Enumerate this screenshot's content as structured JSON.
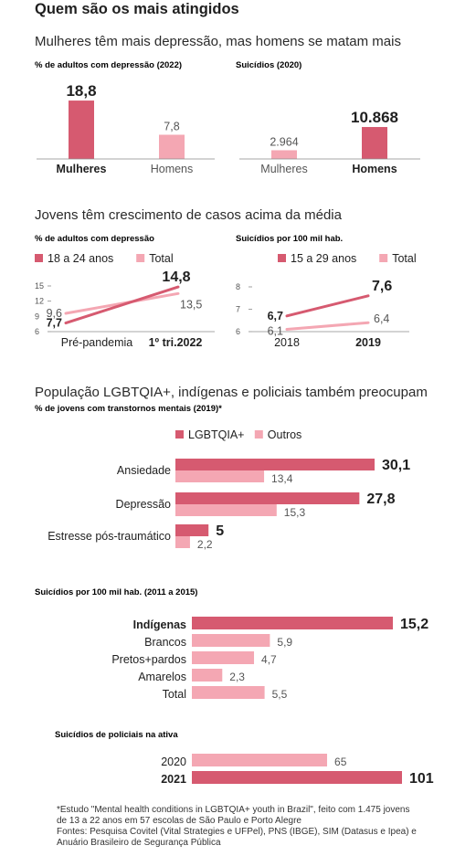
{
  "colors": {
    "dark": "#d65a70",
    "light": "#f4a7b3",
    "axis": "#8a8a8a",
    "text": "#1f1f1f",
    "gray": "#555555"
  },
  "header": {
    "title": "Quem são os mais atingidos",
    "section1": "Mulheres têm mais depressão, mas homens se matam mais",
    "section2": "Jovens têm crescimento de casos acima da média",
    "section3": "População LGBTQIA+, indígenas e policiais também preocupam"
  },
  "footnote": {
    "line1": "*Estudo \"Mental health conditions in LGBTQIA+ youth in Brazil\", feito com 1.475 jovens",
    "line2": "de 13 a 22 anos em 57 escolas de São Paulo e Porto Alegre",
    "line3": "Fontes: Pesquisa Covitel (Vital Strategies e UFPel), PNS (IBGE), SIM (Datasus e Ipea) e",
    "line4": "Anuário Brasileiro de Segurança Pública"
  },
  "chart_data": [
    {
      "id": "depressao-sexo",
      "type": "bar",
      "title": "% de adultos com depressão (2022)",
      "categories": [
        "Mulheres",
        "Homens"
      ],
      "value_labels": [
        "18,8",
        "7,8"
      ],
      "values": [
        18.8,
        7.8
      ],
      "highlight": [
        true,
        false
      ],
      "ylim": [
        0,
        20
      ]
    },
    {
      "id": "suicidios-sexo",
      "type": "bar",
      "title": "Suicídios (2020)",
      "categories": [
        "Mulheres",
        "Homens"
      ],
      "value_labels": [
        "2.964",
        "10.868"
      ],
      "values": [
        2964,
        10868
      ],
      "highlight": [
        false,
        true
      ],
      "ylim": [
        0,
        11500
      ]
    },
    {
      "id": "depressao-jovens",
      "type": "line",
      "title": "% de adultos com depressão",
      "x": [
        "Pré-pandemia",
        "1º tri.2022"
      ],
      "ylim": [
        6,
        15
      ],
      "yticks": [
        "15",
        "12",
        "9",
        "6"
      ],
      "ytick_values": [
        15,
        12,
        9,
        6
      ],
      "series": [
        {
          "name": "18 a 24 anos",
          "values": [
            7.7,
            14.8
          ],
          "labels": [
            "7,7",
            "14,8"
          ],
          "color": "dark"
        },
        {
          "name": "Total",
          "values": [
            9.6,
            13.5
          ],
          "labels": [
            "9,6",
            "13,5"
          ],
          "color": "light"
        }
      ]
    },
    {
      "id": "suicidios-jovens",
      "type": "line",
      "title": "Suicídios por 100 mil hab.",
      "x": [
        "2018",
        "2019"
      ],
      "ylim": [
        6,
        8
      ],
      "yticks": [
        "8",
        "7",
        "6"
      ],
      "ytick_values": [
        8,
        7,
        6
      ],
      "series": [
        {
          "name": "15 a 29 anos",
          "values": [
            6.7,
            7.6
          ],
          "labels": [
            "6,7",
            "7,6"
          ],
          "color": "dark"
        },
        {
          "name": "Total",
          "values": [
            6.1,
            6.4
          ],
          "labels": [
            "6,1",
            "6,4"
          ],
          "color": "light"
        }
      ]
    },
    {
      "id": "lgbt",
      "type": "bar",
      "orientation": "horizontal",
      "title": "% de jovens com transtornos mentais (2019)*",
      "categories": [
        "Ansiedade",
        "Depressão",
        "Estresse pós-traumático"
      ],
      "series": [
        {
          "name": "LGBTQIA+",
          "values": [
            30.1,
            27.8,
            5
          ],
          "labels": [
            "30,1",
            "27,8",
            "5"
          ],
          "color": "dark"
        },
        {
          "name": "Outros",
          "values": [
            13.4,
            15.3,
            2.2
          ],
          "labels": [
            "13,4",
            "15,3",
            "2,2"
          ],
          "color": "light"
        }
      ]
    },
    {
      "id": "etnia",
      "type": "bar",
      "orientation": "horizontal",
      "title": "Suicídios por 100 mil hab. (2011 a 2015)",
      "categories": [
        "Indígenas",
        "Brancos",
        "Pretos+pardos",
        "Amarelos",
        "Total"
      ],
      "values": [
        15.2,
        5.9,
        4.7,
        2.3,
        5.5
      ],
      "labels": [
        "15,2",
        "5,9",
        "4,7",
        "2,3",
        "5,5"
      ],
      "highlight": [
        true,
        false,
        false,
        false,
        false
      ]
    },
    {
      "id": "policiais",
      "type": "bar",
      "orientation": "horizontal",
      "title": "Suicídios de policiais na ativa",
      "categories": [
        "2020",
        "2021"
      ],
      "values": [
        65,
        101
      ],
      "labels": [
        "65",
        "101"
      ],
      "highlight": [
        false,
        true
      ]
    }
  ]
}
